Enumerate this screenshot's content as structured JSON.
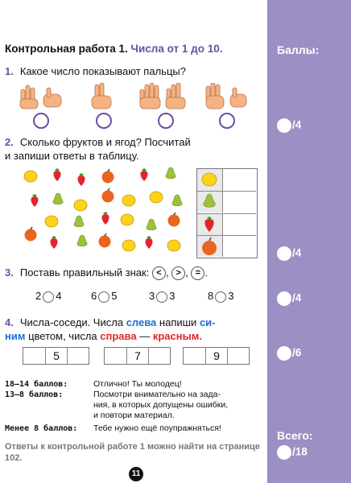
{
  "title": {
    "prefix": "Контрольная работа 1.",
    "topic": "Числа от 1 до 10."
  },
  "q1": {
    "num": "1.",
    "text": "Какое число показывают пальцы?"
  },
  "q2": {
    "num": "2.",
    "line1": "Сколько фруктов и ягод? Посчитай",
    "line2": "и запиши ответы в таблицу."
  },
  "q3": {
    "num": "3.",
    "text": "Поставь правильный знак:",
    "signs": [
      "<",
      ">",
      "="
    ],
    "pairs": [
      {
        "a": "2",
        "b": "4"
      },
      {
        "a": "6",
        "b": "5"
      },
      {
        "a": "3",
        "b": "3"
      },
      {
        "a": "8",
        "b": "3"
      }
    ]
  },
  "q4": {
    "num": "4.",
    "line1_a": "Числа-соседи. Числа",
    "line1_blue": "слева",
    "line1_b": "напиши",
    "line1_blue2": "си-",
    "line2_blue": "ним",
    "line2_a": "цветом, числа",
    "line2_red": "справа",
    "line2_dash": "—",
    "line2_red2": "красным.",
    "numbers": [
      "5",
      "7",
      "9"
    ]
  },
  "scores": [
    {
      "range": "18–14 баллов:",
      "text": "Отлично! Ты молодец!"
    },
    {
      "range": "13–8 баллов:",
      "text": "Посмотри внимательно на зада-"
    },
    {
      "range": "",
      "text": "ния, в которых допущены ошибки,"
    },
    {
      "range": "",
      "text": "и повтори материал."
    },
    {
      "range": "Менее 8 баллов:",
      "text": "Тебе нужно ещё поупражняться!"
    }
  ],
  "note": "Ответы к контрольной работе 1 можно найти на странице 102.",
  "page_number": "11",
  "sidebar": {
    "label": "Баллы:",
    "points": [
      "/4",
      "/4",
      "/4",
      "/6"
    ],
    "total_label": "Всего:",
    "total": "/18"
  },
  "colors": {
    "accent": "#6a4ea5",
    "sidebar": "#9c8fc3",
    "blue": "#1d6fd1",
    "red": "#e3242b"
  },
  "fruit_icons": [
    "lemon-icon",
    "strawberry-icon",
    "pear-icon",
    "apple-icon"
  ]
}
